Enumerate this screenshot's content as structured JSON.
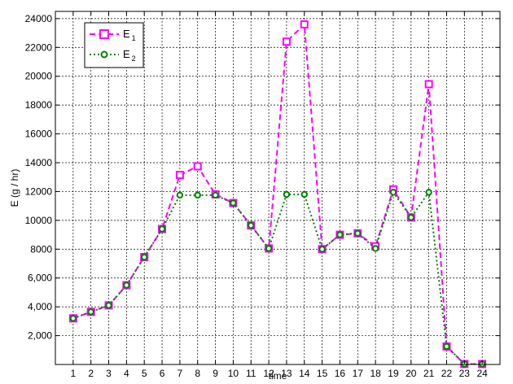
{
  "chart_data": {
    "type": "line",
    "title": "",
    "xlabel": "time",
    "ylabel": "E (g / hr)",
    "x": [
      1,
      2,
      3,
      4,
      5,
      6,
      7,
      8,
      9,
      10,
      11,
      12,
      13,
      14,
      15,
      16,
      17,
      18,
      19,
      20,
      21,
      22,
      23,
      24
    ],
    "xlim": [
      0,
      25
    ],
    "ylim": [
      0,
      24500
    ],
    "yticks": [
      2000,
      4000,
      6000,
      8000,
      10000,
      12000,
      14000,
      16000,
      18000,
      20000,
      22000,
      24000
    ],
    "ytick_labels": [
      "2,000",
      "4,000",
      "6,000",
      "8000",
      "10000",
      "12000",
      "14000",
      "16000",
      "18000",
      "20000",
      "22000",
      "24000"
    ],
    "grid": true,
    "legend_position": "top-left",
    "series": [
      {
        "name": "E",
        "subscript": "1",
        "color": "#ff00ff",
        "line_style": "dashed",
        "marker": "square",
        "values": [
          3200,
          3650,
          4100,
          5500,
          7450,
          9400,
          13150,
          13750,
          11800,
          11200,
          9650,
          8050,
          22400,
          23600,
          8000,
          9000,
          9100,
          8200,
          12150,
          10200,
          19450,
          1250,
          30,
          30
        ]
      },
      {
        "name": "E",
        "subscript": "2",
        "color": "#008000",
        "line_style": "dotted",
        "marker": "circle",
        "values": [
          3200,
          3650,
          4100,
          5500,
          7450,
          9400,
          11750,
          11750,
          11750,
          11200,
          9650,
          8050,
          11800,
          11800,
          8000,
          9000,
          9100,
          8050,
          11950,
          10200,
          11950,
          1250,
          30,
          30
        ]
      }
    ]
  }
}
